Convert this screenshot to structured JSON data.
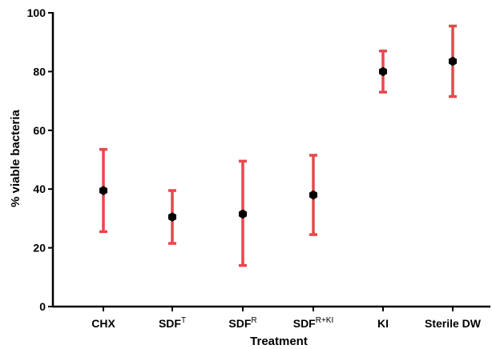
{
  "chart_data": {
    "type": "scatter",
    "title": "",
    "xlabel": "Treatment",
    "ylabel": "% viable bacteria",
    "ylim": [
      0,
      100
    ],
    "yticks": [
      "0",
      "20",
      "40",
      "60",
      "80",
      "100"
    ],
    "grid": false,
    "legend": "none",
    "categories": [
      {
        "base": "CHX",
        "sup": ""
      },
      {
        "base": "SDF",
        "sup": "T"
      },
      {
        "base": "SDF",
        "sup": "R"
      },
      {
        "base": "SDF",
        "sup": "R+KI"
      },
      {
        "base": "KI",
        "sup": ""
      },
      {
        "base": "Sterile DW",
        "sup": ""
      }
    ],
    "series": [
      {
        "values": [
          39.5,
          30.5,
          31.5,
          38,
          80,
          83.5
        ],
        "lower": [
          25.5,
          21.5,
          14,
          24.5,
          73,
          71.5
        ],
        "upper": [
          53.5,
          39.5,
          49.5,
          51.5,
          87,
          95.5
        ]
      }
    ],
    "colors": {
      "marker": "#000000",
      "error_bar": "#e8474c",
      "axis": "#000000"
    }
  }
}
